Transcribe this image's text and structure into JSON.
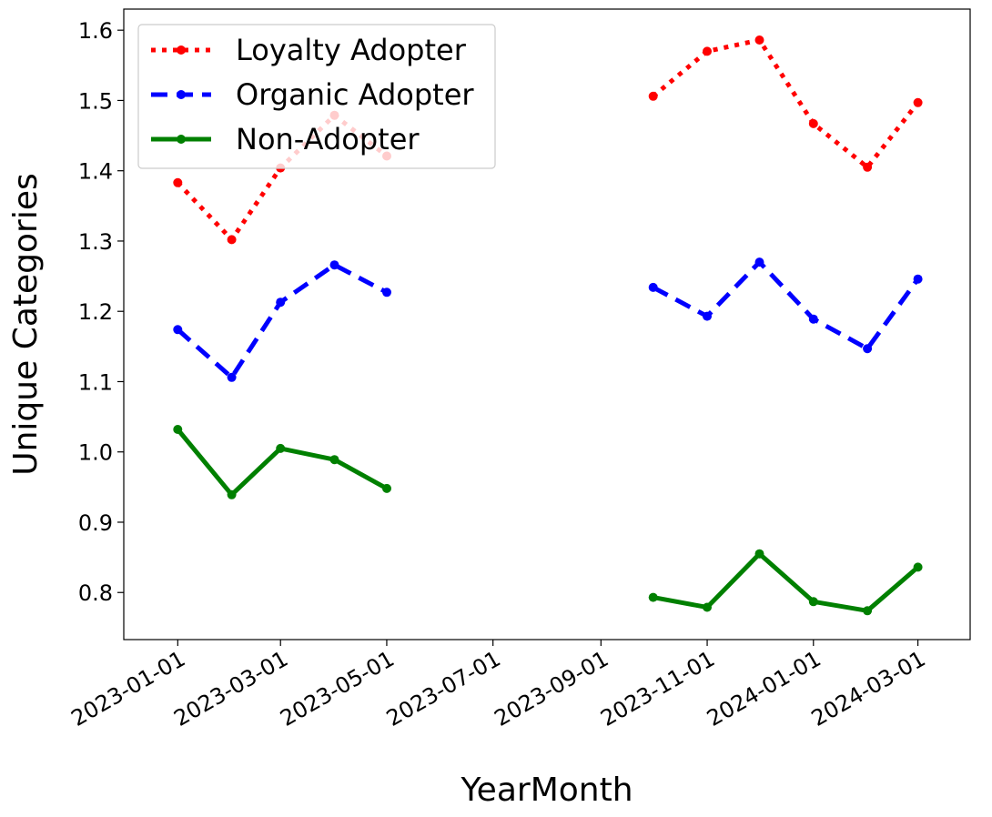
{
  "chart_data": {
    "type": "line",
    "title": "",
    "xlabel": "YearMonth",
    "ylabel": "Unique Categories",
    "ylim": [
      0.733,
      1.63
    ],
    "x_range": [
      "2022-12-01",
      "2024-03-31"
    ],
    "grid": false,
    "legend_position": "top-left",
    "x_ticks": [
      "2023-01-01",
      "2023-03-01",
      "2023-05-01",
      "2023-07-01",
      "2023-09-01",
      "2023-11-01",
      "2024-01-01",
      "2024-03-01"
    ],
    "y_ticks": [
      0.8,
      0.9,
      1.0,
      1.1,
      1.2,
      1.3,
      1.4,
      1.5,
      1.6
    ],
    "y_tick_labels": [
      "0.8",
      "0.9",
      "1.0",
      "1.1",
      "1.2",
      "1.3",
      "1.4",
      "1.5",
      "1.6"
    ],
    "x_dates": [
      "2023-01-01",
      "2023-02-01",
      "2023-03-01",
      "2023-04-01",
      "2023-05-01",
      "2023-06-01",
      "2023-07-01",
      "2023-08-01",
      "2023-09-01",
      "2023-10-01",
      "2023-11-01",
      "2023-12-01",
      "2024-01-01",
      "2024-02-01",
      "2024-03-01"
    ],
    "series": [
      {
        "name": "Loyalty Adopter",
        "color": "#ff0000",
        "style": "dotted",
        "values": [
          1.383,
          1.302,
          1.404,
          1.479,
          1.421,
          null,
          null,
          null,
          null,
          1.506,
          1.57,
          1.586,
          1.467,
          1.405,
          1.497
        ]
      },
      {
        "name": "Organic Adopter",
        "color": "#0000ff",
        "style": "dashed",
        "values": [
          1.174,
          1.106,
          1.213,
          1.266,
          1.227,
          null,
          null,
          null,
          null,
          1.234,
          1.193,
          1.27,
          1.189,
          1.147,
          1.246
        ]
      },
      {
        "name": "Non-Adopter",
        "color": "#008000",
        "style": "solid",
        "values": [
          1.032,
          0.939,
          1.005,
          0.989,
          0.948,
          null,
          null,
          null,
          null,
          0.793,
          0.779,
          0.855,
          0.787,
          0.774,
          0.836
        ]
      }
    ]
  }
}
